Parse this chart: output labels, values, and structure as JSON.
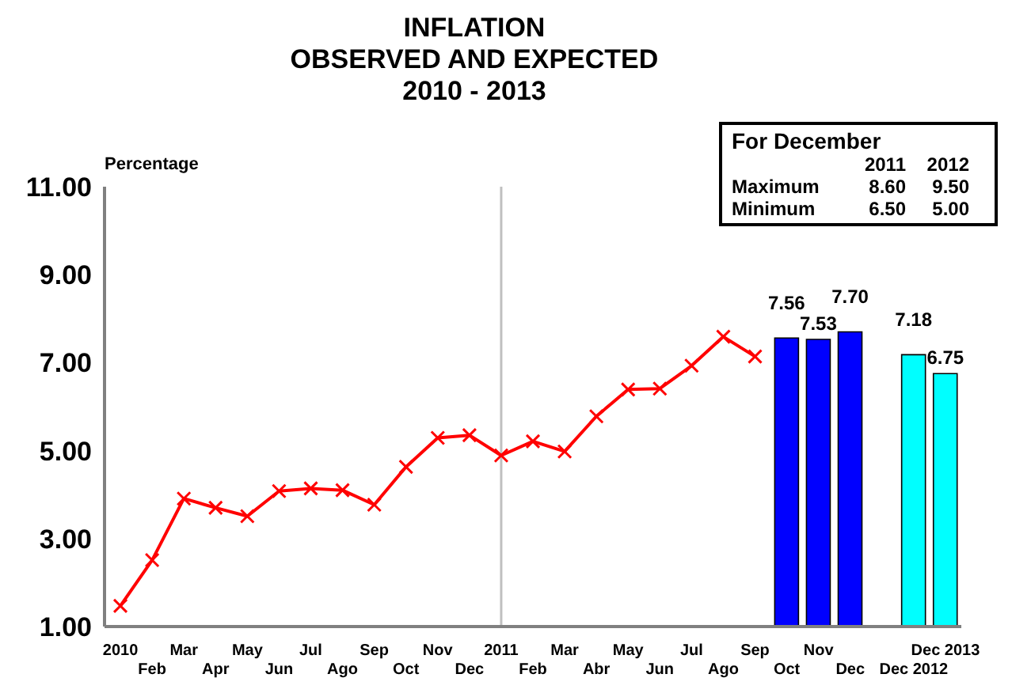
{
  "chart_data": {
    "type": "bar",
    "title": "INFLATION\nOBSERVED AND EXPECTED\n2010 - 2013",
    "ylabel": "Percentage",
    "categories": [
      "2010",
      "Feb",
      "Mar",
      "Apr",
      "May",
      "Jun",
      "Jul",
      "Ago",
      "Sep",
      "Oct",
      "Nov",
      "Dec",
      "2011",
      "Feb",
      "Mar",
      "Abr",
      "May",
      "Jun",
      "Jul",
      "Ago",
      "Sep",
      "Oct",
      "Nov",
      "Dec",
      null,
      "Dec 2012",
      "Dec 2013"
    ],
    "series": [
      {
        "type": "line",
        "color": "#ff0000",
        "values": [
          1.47,
          2.51,
          3.91,
          3.7,
          3.51,
          4.08,
          4.14,
          4.1,
          3.77,
          4.63,
          5.29,
          5.35,
          4.89,
          5.21,
          4.98,
          5.78,
          6.39,
          6.41,
          6.93,
          7.59,
          7.14,
          null,
          null,
          null,
          null,
          null,
          null
        ]
      },
      {
        "color": "#0000ff",
        "values": [
          null,
          null,
          null,
          null,
          null,
          null,
          null,
          null,
          null,
          null,
          null,
          null,
          null,
          null,
          null,
          null,
          null,
          null,
          null,
          null,
          null,
          7.56,
          7.53,
          7.7,
          null,
          null,
          null
        ],
        "value_labels": [
          null,
          null,
          null,
          null,
          null,
          null,
          null,
          null,
          null,
          null,
          null,
          null,
          null,
          null,
          null,
          null,
          null,
          null,
          null,
          null,
          null,
          "7.56",
          "7.53",
          "7.70",
          null,
          null,
          null
        ]
      },
      {
        "color": "#00ffff",
        "values": [
          null,
          null,
          null,
          null,
          null,
          null,
          null,
          null,
          null,
          null,
          null,
          null,
          null,
          null,
          null,
          null,
          null,
          null,
          null,
          null,
          null,
          null,
          null,
          null,
          null,
          7.18,
          6.75
        ],
        "value_labels": [
          null,
          null,
          null,
          null,
          null,
          null,
          null,
          null,
          null,
          null,
          null,
          null,
          null,
          null,
          null,
          null,
          null,
          null,
          null,
          null,
          null,
          null,
          null,
          null,
          null,
          "7.18",
          "6.75"
        ]
      }
    ],
    "ylim": [
      1,
      11
    ],
    "yticks": [
      {
        "value": 1,
        "label": "1.00"
      },
      {
        "value": 3,
        "label": "3.00"
      },
      {
        "value": 5,
        "label": "5.00"
      },
      {
        "value": 7,
        "label": "7.00"
      },
      {
        "value": 9,
        "label": "9.00"
      },
      {
        "value": 11,
        "label": "11.00"
      }
    ],
    "ref_lines": [
      {
        "axis": "x",
        "value": "2011",
        "color": "#c0c0c0"
      }
    ],
    "annotations": [
      "For December",
      "2011",
      "2012",
      "Maximum",
      "8.60",
      "9.50",
      "Minimum",
      "6.50",
      "5.00"
    ],
    "grid": false,
    "legend": false,
    "marker": "cross"
  }
}
